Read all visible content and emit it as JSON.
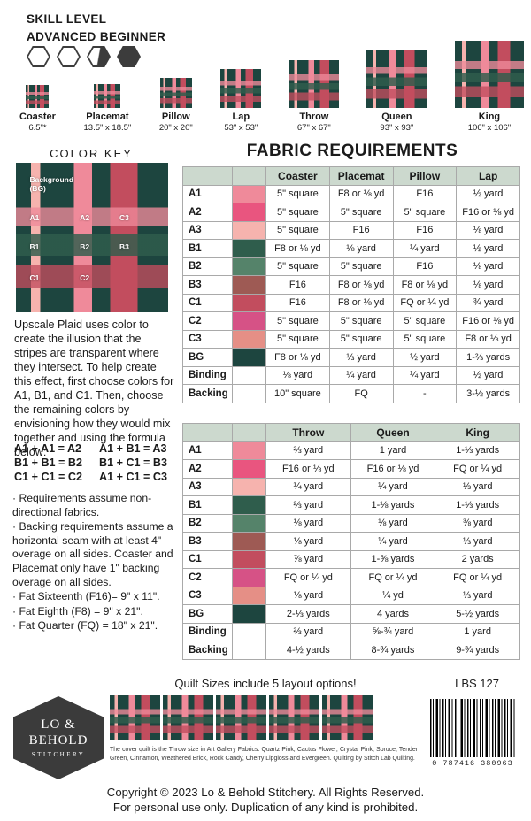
{
  "skill": {
    "line1": "SKILL LEVEL",
    "line2": "ADVANCED BEGINNER"
  },
  "sizes": [
    {
      "name": "Coaster",
      "dims": "6.5\"*"
    },
    {
      "name": "Placemat",
      "dims": "13.5\" x 18.5\""
    },
    {
      "name": "Pillow",
      "dims": "20\" x 20\""
    },
    {
      "name": "Lap",
      "dims": "53\" x 53\""
    },
    {
      "name": "Throw",
      "dims": "67\" x 67\""
    },
    {
      "name": "Queen",
      "dims": "93\" x 93\""
    },
    {
      "name": "King",
      "dims": "106\" x 106\""
    }
  ],
  "color_key": {
    "title": "COLOR KEY",
    "labels": {
      "bg": "Background\n(BG)",
      "a1": "A1",
      "a2": "A2",
      "c3": "C3",
      "b1": "B1",
      "b2": "B2",
      "b3": "B3",
      "c1": "C1",
      "c2": "C2"
    }
  },
  "intro": "Upscale Plaid uses color to create the illusion that the stripes are transparent where they intersect. To help create this effect, first choose colors for A1, B1, and C1. Then, choose the remaining colors by envisioning how they would mix together and using the formula below:",
  "formula": [
    "A1 + A1 = A2",
    "A1 + B1 = A3",
    "B1 + B1 = B2",
    "B1 + C1 = B3",
    "C1 + C1 = C2",
    "A1 + C1 = C3"
  ],
  "notes": [
    "· Requirements assume non-directional fabrics.",
    "· Backing requirements assume a horizontal seam with at least 4\" overage on all sides. Coaster and Placemat only have 1\" backing overage on all sides.",
    "· Fat Sixteenth (F16)= 9\" x 11\".",
    "· Fat Eighth (F8) = 9\" x 21\".",
    "· Fat Quarter (FQ) = 18\" x 21\"."
  ],
  "fabric_title": "FABRIC REQUIREMENTS",
  "tables": [
    {
      "columns": [
        "Coaster",
        "Placemat",
        "Pillow",
        "Lap"
      ],
      "rows": [
        {
          "label": "A1",
          "color": "a1",
          "values": [
            "5\" square",
            "F8 or ⅛ yd",
            "F16",
            "½ yard"
          ]
        },
        {
          "label": "A2",
          "color": "a2",
          "values": [
            "5\" square",
            "5\" square",
            "5\" square",
            "F16 or ⅛ yd"
          ]
        },
        {
          "label": "A3",
          "color": "a3",
          "values": [
            "5\" square",
            "F16",
            "F16",
            "⅛ yard"
          ]
        },
        {
          "label": "B1",
          "color": "b1",
          "values": [
            "F8 or ⅛ yd",
            "⅛ yard",
            "¼ yard",
            "½ yard"
          ]
        },
        {
          "label": "B2",
          "color": "b2",
          "values": [
            "5\" square",
            "5\" square",
            "F16",
            "⅛ yard"
          ]
        },
        {
          "label": "B3",
          "color": "b3",
          "values": [
            "F16",
            "F8 or ⅛ yd",
            "F8 or ⅛ yd",
            "⅛ yard"
          ]
        },
        {
          "label": "C1",
          "color": "c1",
          "values": [
            "F16",
            "F8 or ⅛ yd",
            "FQ or ¼ yd",
            "¾ yard"
          ]
        },
        {
          "label": "C2",
          "color": "c2",
          "values": [
            "5\" square",
            "5\" square",
            "5\" square",
            "F16 or ⅛ yd"
          ]
        },
        {
          "label": "C3",
          "color": "c3",
          "values": [
            "5\" square",
            "5\" square",
            "5\" square",
            "F8 or ⅛ yd"
          ]
        },
        {
          "label": "BG",
          "color": "bg",
          "values": [
            "F8 or ⅛ yd",
            "⅓ yard",
            "½ yard",
            "1-⅔ yards"
          ]
        },
        {
          "label": "Binding",
          "color": "",
          "values": [
            "⅛ yard",
            "¼ yard",
            "¼ yard",
            "½ yard"
          ]
        },
        {
          "label": "Backing",
          "color": "",
          "values": [
            "10\" square",
            "FQ",
            "-",
            "3-½ yards"
          ]
        }
      ]
    },
    {
      "columns": [
        "Throw",
        "Queen",
        "King"
      ],
      "rows": [
        {
          "label": "A1",
          "color": "a1",
          "values": [
            "⅔ yard",
            "1 yard",
            "1-⅓ yards"
          ]
        },
        {
          "label": "A2",
          "color": "a2",
          "values": [
            "F16 or ⅛ yd",
            "F16 or ⅛ yd",
            "FQ or ¼ yd"
          ]
        },
        {
          "label": "A3",
          "color": "a3",
          "values": [
            "¼ yard",
            "¼ yard",
            "⅓ yard"
          ]
        },
        {
          "label": "B1",
          "color": "b1",
          "values": [
            "⅔ yard",
            "1-⅛ yards",
            "1-⅓ yards"
          ]
        },
        {
          "label": "B2",
          "color": "b2",
          "values": [
            "⅛ yard",
            "⅛ yard",
            "⅜ yard"
          ]
        },
        {
          "label": "B3",
          "color": "b3",
          "values": [
            "⅛ yard",
            "¼ yard",
            "⅓ yard"
          ]
        },
        {
          "label": "C1",
          "color": "c1",
          "values": [
            "⅞ yard",
            "1-⅝ yards",
            "2 yards"
          ]
        },
        {
          "label": "C2",
          "color": "c2",
          "values": [
            "FQ or ¼ yd",
            "FQ or ¼ yd",
            "FQ or ¼ yd"
          ]
        },
        {
          "label": "C3",
          "color": "c3",
          "values": [
            "⅛ yard",
            "¼ yd",
            "⅓ yard"
          ]
        },
        {
          "label": "BG",
          "color": "bg",
          "values": [
            "2-⅓ yards",
            "4 yards",
            "5-½ yards"
          ]
        },
        {
          "label": "Binding",
          "color": "",
          "values": [
            "⅔ yard",
            "⅝-¾ yard",
            "1 yard"
          ]
        },
        {
          "label": "Backing",
          "color": "",
          "values": [
            "4-½ yards",
            "8-¾ yards",
            "9-¾ yards"
          ]
        }
      ]
    }
  ],
  "footer": {
    "quilt_note": "Quilt Sizes include 5 layout options!",
    "sku": "LBS 127",
    "logo": {
      "line1": "LO &",
      "line2": "BEHOLD",
      "line3": "STITCHERY"
    },
    "caption": "The cover quilt is the Throw size in Art Gallery Fabrics: Quartz Pink, Cactus Flower, Crystal Pink, Spruce, Tender Green, Cinnamon, Weathered Brick, Rock Candy, Cherry Lipgloss and Evergreen. Quilting by Stitch Lab Quilting.",
    "barcode_digits": "0 787416 380963",
    "copyright1": "Copyright © 2023 Lo & Behold Stitchery. All Rights Reserved.",
    "copyright2": "For personal use only. Duplication of any kind is prohibited."
  },
  "colors": {
    "bg": "#1d453f",
    "a1": "#ef8a9a",
    "a2": "#e9557f",
    "a3": "#f6b3ae",
    "b1": "#2f5d4c",
    "b2": "#55836a",
    "b3": "#9e5a54",
    "c1": "#c24d5e",
    "c2": "#d65286",
    "c3": "#e58f86",
    "header_bg": "#ccd9ce"
  }
}
